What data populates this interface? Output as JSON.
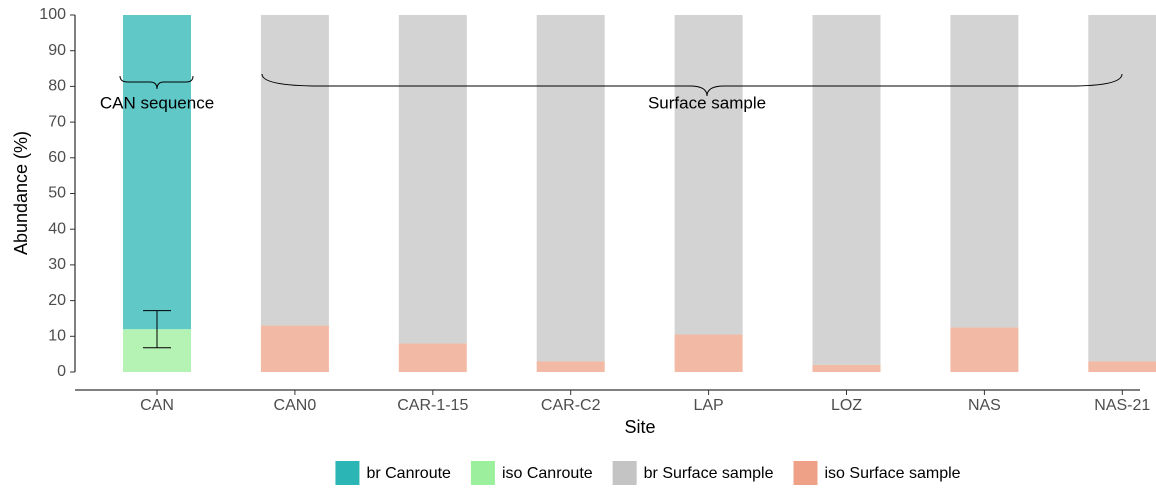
{
  "chart_data": {
    "type": "stacked_bar",
    "x_label": "Site",
    "y_label": "Abundance (%)",
    "categories": [
      "CAN",
      "CAN0",
      "CAR-1-15",
      "CAR-C2",
      "LAP",
      "LOZ",
      "NAS",
      "NAS-21"
    ],
    "series": [
      {
        "name": "br Canroute",
        "color": "#2cb5b5",
        "values": [
          88,
          null,
          null,
          null,
          null,
          null,
          null,
          null
        ]
      },
      {
        "name": "iso Canroute",
        "color": "#9cef9c",
        "values": [
          12,
          null,
          null,
          null,
          null,
          null,
          null,
          null
        ],
        "errors": [
          5.2,
          null,
          null,
          null,
          null,
          null,
          null,
          null
        ]
      },
      {
        "name": "br Surface sample",
        "color": "#c4c4c4",
        "values": [
          null,
          87,
          92,
          97,
          89.5,
          98,
          87.5,
          97
        ]
      },
      {
        "name": "iso Surface sample",
        "color": "#eea186",
        "values": [
          null,
          13,
          8,
          3,
          10.5,
          2,
          12.5,
          3
        ]
      }
    ],
    "annotations": [
      "CAN sequence",
      "Surface sample"
    ],
    "ylim": [
      0,
      100
    ],
    "yticks": [
      0,
      10,
      20,
      30,
      40,
      50,
      60,
      70,
      80,
      90,
      100
    ],
    "legend": "bottom"
  }
}
